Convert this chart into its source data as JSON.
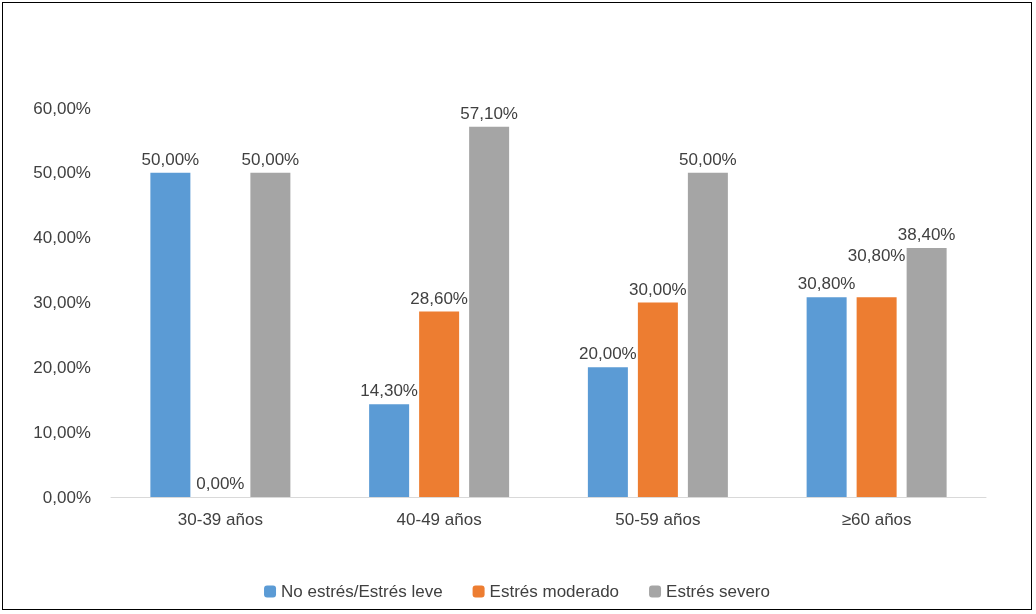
{
  "chart_data": {
    "type": "bar",
    "categories": [
      "30-39 años",
      "40-49 años",
      "50-59 años",
      "≥60 años"
    ],
    "series": [
      {
        "name": "No estrés/Estrés leve",
        "color": "#5b9bd5",
        "values": [
          50,
          14.3,
          20,
          30.8
        ],
        "value_labels": [
          "50,00%",
          "14,30%",
          "20,00%",
          "30,80%"
        ]
      },
      {
        "name": "Estrés moderado",
        "color": "#ed7d31",
        "values": [
          0,
          28.6,
          30,
          30.8
        ],
        "value_labels": [
          "0,00%",
          "28,60%",
          "30,00%",
          "30,80%"
        ]
      },
      {
        "name": "Estrés severo",
        "color": "#a5a5a5",
        "values": [
          50,
          57.1,
          50,
          38.4
        ],
        "value_labels": [
          "50,00%",
          "57,10%",
          "50,00%",
          "38,40%"
        ]
      }
    ],
    "ylim": [
      0,
      60
    ],
    "yticks": [
      {
        "value": 0,
        "label": "0,00%"
      },
      {
        "value": 10,
        "label": "10,00%"
      },
      {
        "value": 20,
        "label": "20,00%"
      },
      {
        "value": 30,
        "label": "30,00%"
      },
      {
        "value": 40,
        "label": "40,00%"
      },
      {
        "value": 50,
        "label": "50,00%"
      },
      {
        "value": 60,
        "label": "60,00%"
      }
    ],
    "grid": false,
    "legend": "bottom"
  }
}
